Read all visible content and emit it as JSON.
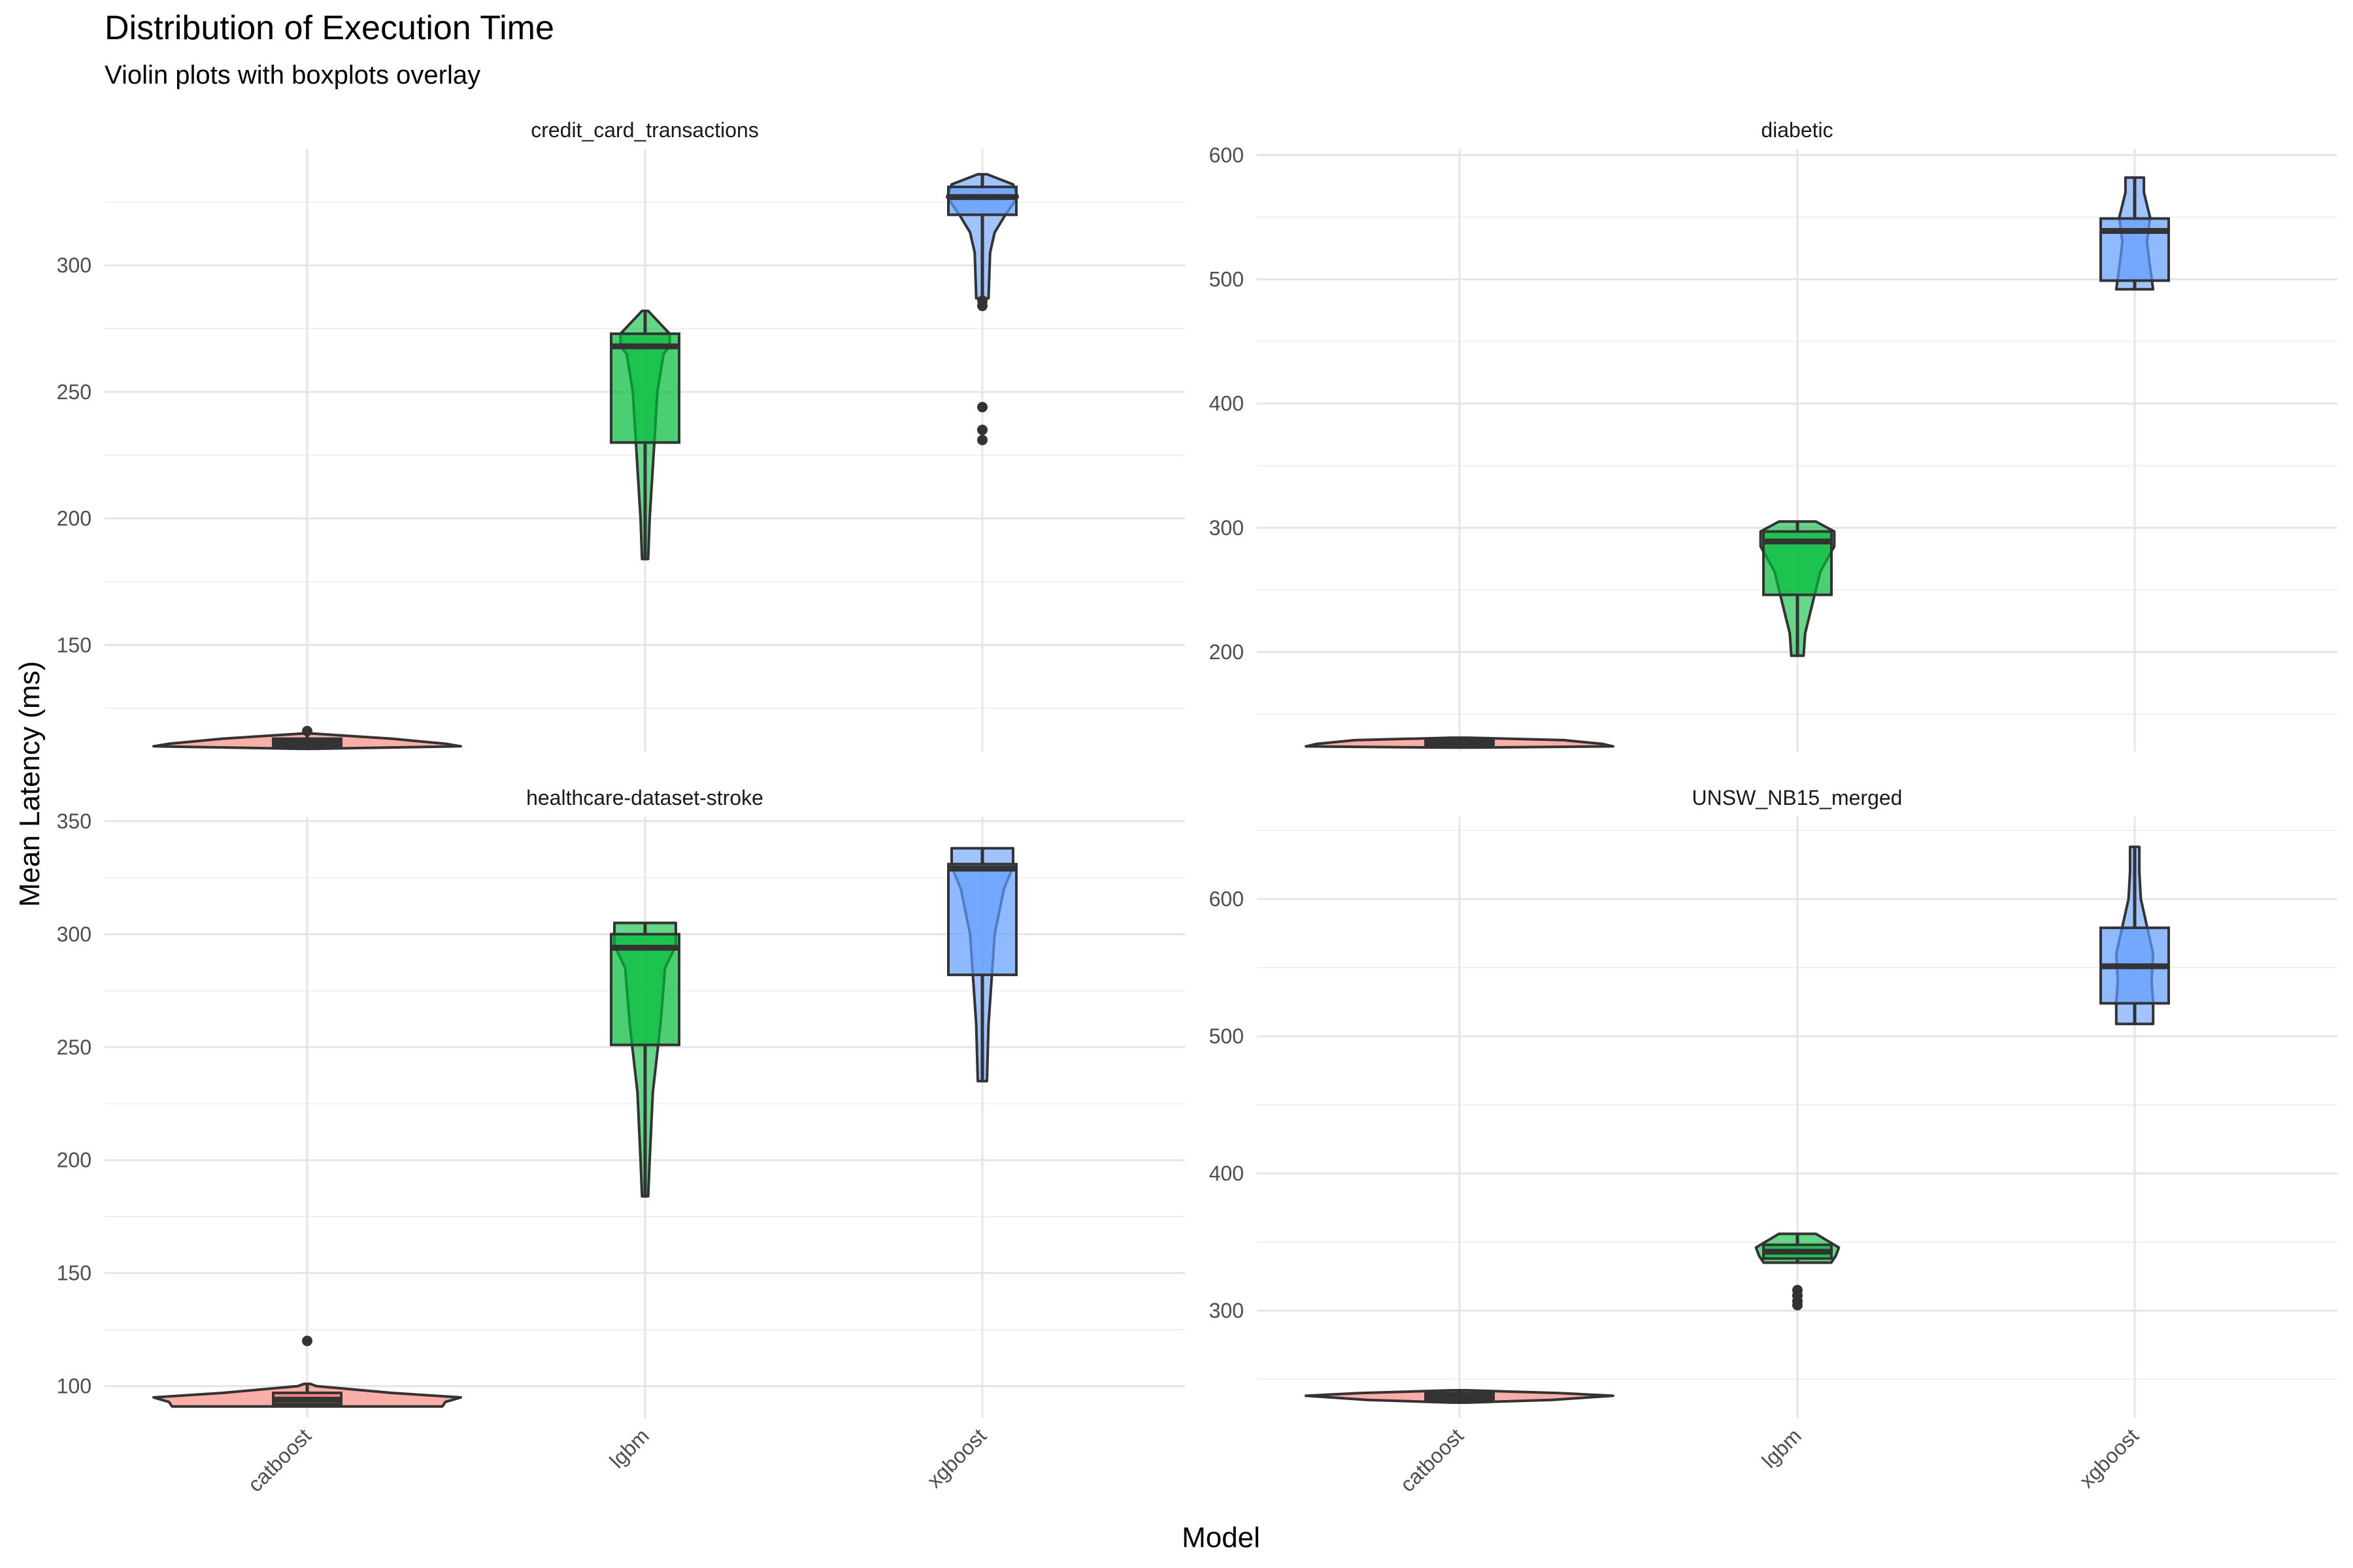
{
  "chart_data": {
    "type": "violin",
    "title": "Distribution of Execution Time",
    "subtitle": "Violin plots with boxplots overlay",
    "xlabel": "Model",
    "ylabel": "Mean Latency (ms)",
    "categories": [
      "catboost",
      "lgbm",
      "xgboost"
    ],
    "colors": {
      "catboost": "#F8766D",
      "lgbm": "#00BA38",
      "xgboost": "#619CFF"
    },
    "facets": [
      {
        "name": "credit_card_transactions",
        "ylim": [
          108,
          346
        ],
        "major_ticks": [
          150,
          200,
          250,
          300
        ],
        "minor_ticks": [
          125,
          175,
          225,
          275,
          325
        ],
        "models": [
          {
            "model": "catboost",
            "box": {
              "q1": 110,
              "median": 111.5,
              "q3": 113,
              "whisker_low": 109,
              "whisker_high": 115
            },
            "outliers": [
              116
            ],
            "violin": [
              [
                109,
                0.05
              ],
              [
                110,
                1.0
              ],
              [
                111,
                0.9
              ],
              [
                113,
                0.55
              ],
              [
                115,
                0.04
              ]
            ]
          },
          {
            "model": "lgbm",
            "box": {
              "q1": 230,
              "median": 268,
              "q3": 273,
              "whisker_low": 184,
              "whisker_high": 282
            },
            "outliers": [],
            "violin": [
              [
                184,
                0.02
              ],
              [
                200,
                0.03
              ],
              [
                230,
                0.06
              ],
              [
                250,
                0.08
              ],
              [
                265,
                0.12
              ],
              [
                268,
                0.16
              ],
              [
                273,
                0.16
              ],
              [
                282,
                0.02
              ]
            ]
          },
          {
            "model": "xgboost",
            "box": {
              "q1": 320,
              "median": 327,
              "q3": 331,
              "whisker_low": 287,
              "whisker_high": 336
            },
            "outliers": [
              286,
              284,
              244,
              235,
              231
            ],
            "violin": [
              [
                287,
                0.04
              ],
              [
                305,
                0.05
              ],
              [
                313,
                0.08
              ],
              [
                320,
                0.15
              ],
              [
                327,
                0.23
              ],
              [
                332,
                0.2
              ],
              [
                336,
                0.03
              ]
            ]
          }
        ]
      },
      {
        "name": "diabetic",
        "ylim": [
          120,
          605
        ],
        "major_ticks": [
          200,
          300,
          400,
          500,
          600
        ],
        "minor_ticks": [
          150,
          250,
          350,
          450,
          550
        ],
        "models": [
          {
            "model": "catboost",
            "box": {
              "q1": 124,
              "median": 126.5,
              "q3": 129,
              "whisker_low": 123,
              "whisker_high": 131
            },
            "outliers": [],
            "violin": [
              [
                123,
                0.08
              ],
              [
                124,
                1.0
              ],
              [
                126,
                0.93
              ],
              [
                129,
                0.68
              ],
              [
                131,
                0.05
              ]
            ]
          },
          {
            "model": "lgbm",
            "box": {
              "q1": 246,
              "median": 289,
              "q3": 297,
              "whisker_low": 197,
              "whisker_high": 305
            },
            "outliers": [],
            "violin": [
              [
                197,
                0.04
              ],
              [
                215,
                0.05
              ],
              [
                240,
                0.1
              ],
              [
                265,
                0.15
              ],
              [
                285,
                0.24
              ],
              [
                297,
                0.24
              ],
              [
                305,
                0.12
              ]
            ]
          },
          {
            "model": "xgboost",
            "box": {
              "q1": 499,
              "median": 539,
              "q3": 549,
              "whisker_low": 492,
              "whisker_high": 582
            },
            "outliers": [],
            "violin": [
              [
                492,
                0.12
              ],
              [
                510,
                0.1
              ],
              [
                530,
                0.08
              ],
              [
                550,
                0.1
              ],
              [
                570,
                0.06
              ],
              [
                582,
                0.06
              ]
            ]
          }
        ]
      },
      {
        "name": "healthcare-dataset-stroke",
        "ylim": [
          86,
          352
        ],
        "major_ticks": [
          100,
          150,
          200,
          250,
          300,
          350
        ],
        "minor_ticks": [
          125,
          175,
          225,
          275,
          325
        ],
        "models": [
          {
            "model": "catboost",
            "box": {
              "q1": 92,
              "median": 94,
              "q3": 97,
              "whisker_low": 91,
              "whisker_high": 101
            },
            "outliers": [
              120
            ],
            "violin": [
              [
                91,
                0.88
              ],
              [
                93,
                0.9
              ],
              [
                95,
                1.0
              ],
              [
                97,
                0.55
              ],
              [
                100,
                0.06
              ],
              [
                101,
                0.02
              ]
            ]
          },
          {
            "model": "lgbm",
            "box": {
              "q1": 251,
              "median": 294,
              "q3": 300,
              "whisker_low": 184,
              "whisker_high": 305
            },
            "outliers": [],
            "violin": [
              [
                184,
                0.02
              ],
              [
                200,
                0.03
              ],
              [
                230,
                0.05
              ],
              [
                260,
                0.1
              ],
              [
                285,
                0.13
              ],
              [
                295,
                0.2
              ],
              [
                305,
                0.2
              ]
            ]
          },
          {
            "model": "xgboost",
            "box": {
              "q1": 282,
              "median": 329,
              "q3": 331,
              "whisker_low": 235,
              "whisker_high": 338
            },
            "outliers": [],
            "violin": [
              [
                235,
                0.03
              ],
              [
                260,
                0.04
              ],
              [
                280,
                0.06
              ],
              [
                300,
                0.08
              ],
              [
                320,
                0.14
              ],
              [
                330,
                0.2
              ],
              [
                338,
                0.2
              ]
            ]
          }
        ]
      },
      {
        "name": "UNSW_NB15_merged",
        "ylim": [
          222,
          660
        ],
        "major_ticks": [
          300,
          400,
          500,
          600
        ],
        "minor_ticks": [
          250,
          350,
          450,
          550,
          650
        ],
        "models": [
          {
            "model": "catboost",
            "box": {
              "q1": 234,
              "median": 237,
              "q3": 240,
              "whisker_low": 233,
              "whisker_high": 242
            },
            "outliers": [],
            "violin": [
              [
                233,
                0.05
              ],
              [
                235,
                0.6
              ],
              [
                238,
                1.0
              ],
              [
                240,
                0.65
              ],
              [
                242,
                0.05
              ]
            ]
          },
          {
            "model": "lgbm",
            "box": {
              "q1": 338,
              "median": 343,
              "q3": 348,
              "whisker_low": 335,
              "whisker_high": 356
            },
            "outliers": [
              304,
              307,
              311,
              315
            ],
            "violin": [
              [
                335,
                0.22
              ],
              [
                340,
                0.25
              ],
              [
                346,
                0.27
              ],
              [
                352,
                0.18
              ],
              [
                356,
                0.12
              ]
            ]
          },
          {
            "model": "xgboost",
            "box": {
              "q1": 524,
              "median": 551,
              "q3": 579,
              "whisker_low": 509,
              "whisker_high": 638
            },
            "outliers": [],
            "violin": [
              [
                509,
                0.12
              ],
              [
                525,
                0.12
              ],
              [
                540,
                0.11
              ],
              [
                560,
                0.12
              ],
              [
                580,
                0.08
              ],
              [
                600,
                0.04
              ],
              [
                620,
                0.03
              ],
              [
                638,
                0.03
              ]
            ]
          }
        ]
      }
    ]
  }
}
